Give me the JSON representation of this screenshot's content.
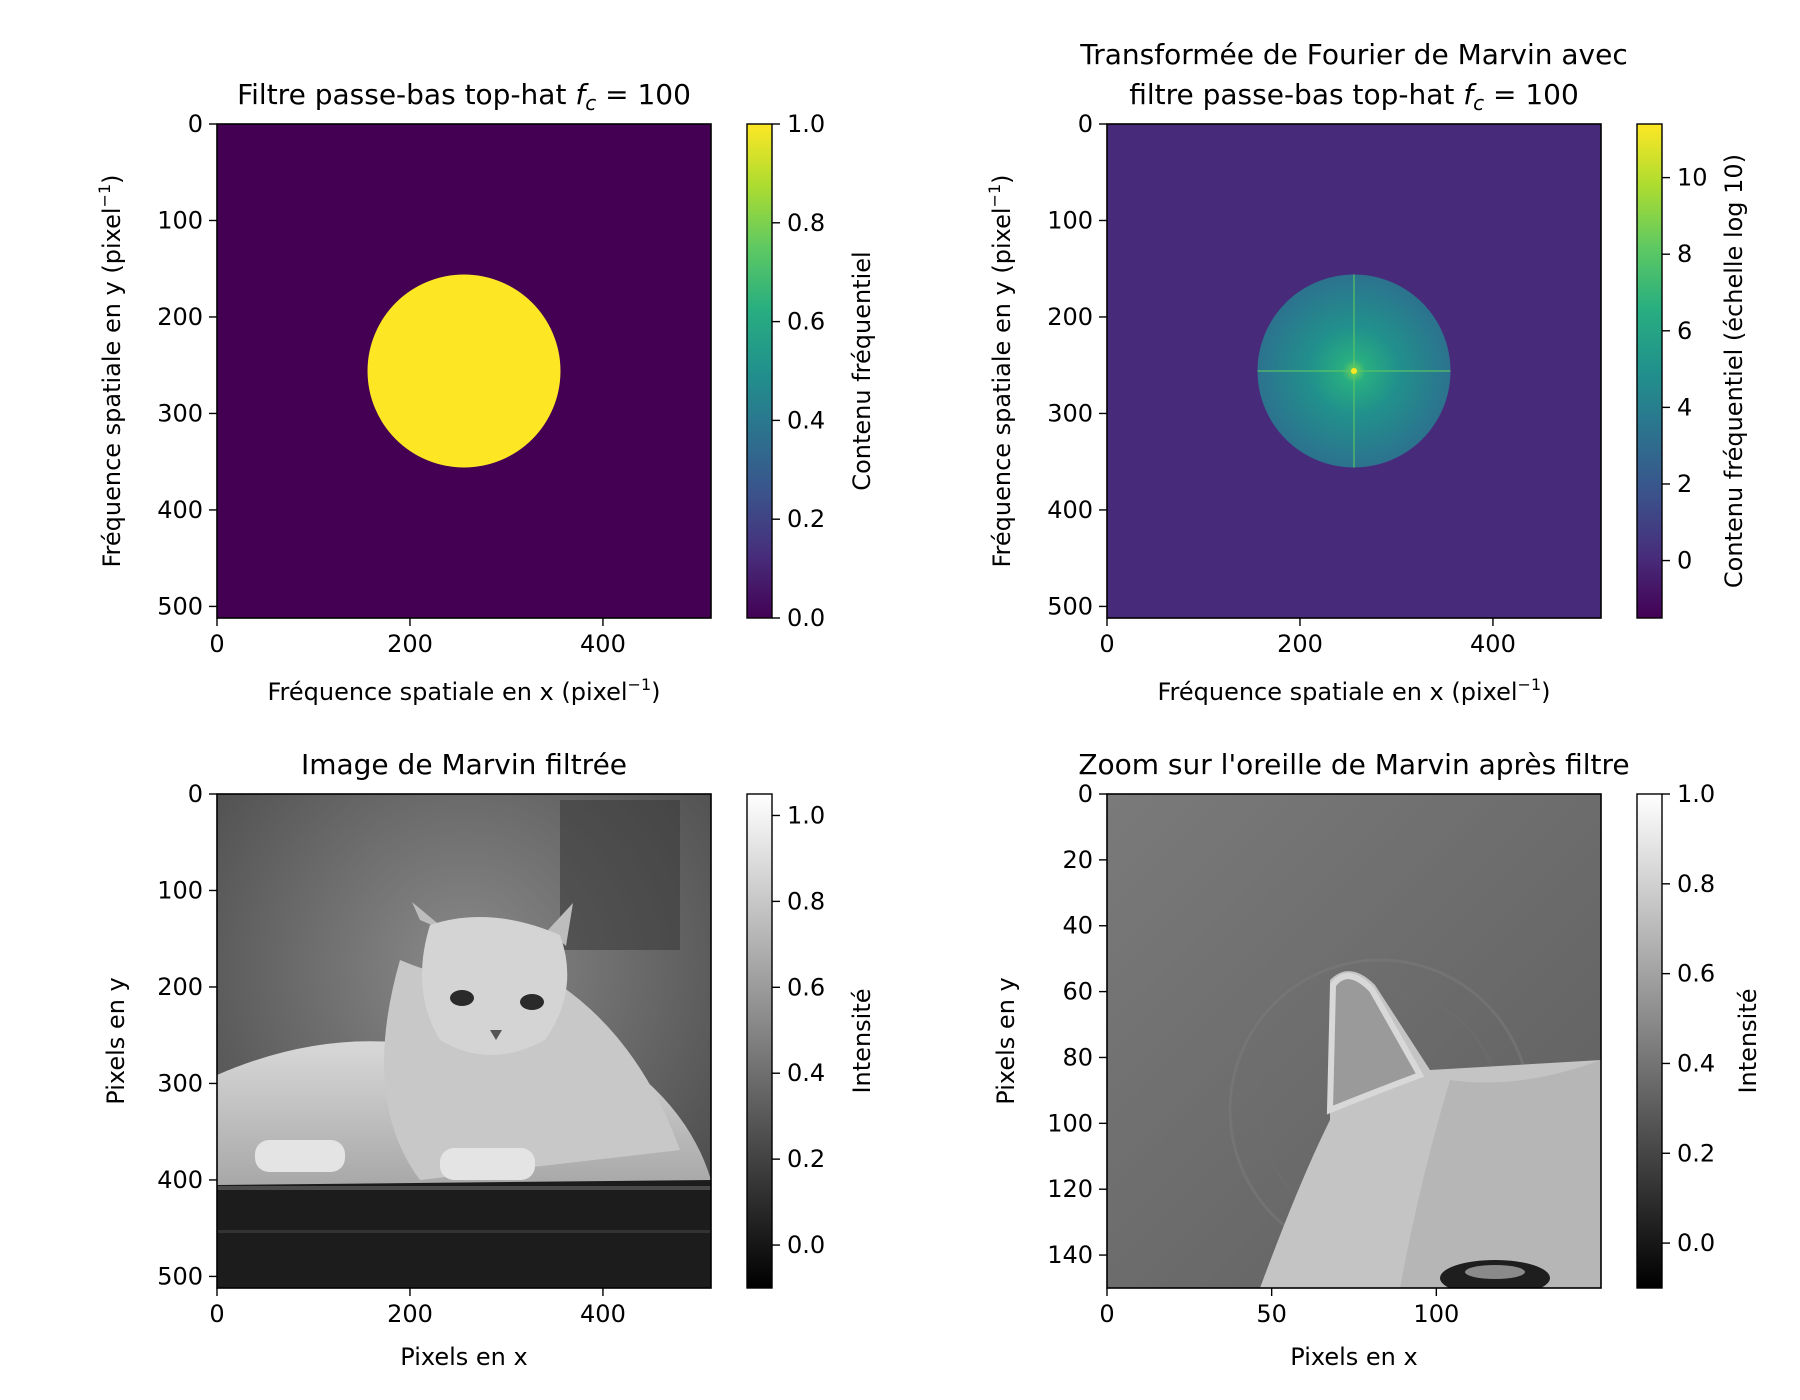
{
  "chart_data": [
    {
      "type": "heatmap",
      "id": "filter",
      "title_prefix": "Filtre passe-bas top-hat ",
      "title_math": "f",
      "title_sub": "c",
      "title_suffix": " = 100",
      "xlabel": "Fréquence spatiale en x (pixel",
      "xlabel_sup": "−1",
      "xlabel_end": ")",
      "ylabel": "Fréquence spatiale en y (pixel",
      "ylabel_sup": "−1",
      "ylabel_end": ")",
      "xlim": [
        0,
        512
      ],
      "ylim": [
        0,
        512
      ],
      "xticks": [
        0,
        200,
        400
      ],
      "yticks": [
        0,
        100,
        200,
        300,
        400,
        500
      ],
      "grid": false,
      "colormap": "viridis",
      "colorbar": {
        "label": "Contenu fréquentiel",
        "range": [
          0.0,
          1.0
        ],
        "ticks": [
          "0.0",
          "0.2",
          "0.4",
          "0.6",
          "0.8",
          "1.0"
        ],
        "tick_values": [
          0.0,
          0.2,
          0.4,
          0.6,
          0.8,
          1.0
        ]
      },
      "content": {
        "background_value": 0.0,
        "disk_value": 1.0,
        "disk_center": [
          256,
          256
        ],
        "disk_radius": 100
      }
    },
    {
      "type": "heatmap",
      "id": "spectrum",
      "title_line1": "Transformée de Fourier de Marvin avec",
      "title_prefix": "filtre passe-bas top-hat ",
      "title_math": "f",
      "title_sub": "c",
      "title_suffix": " = 100",
      "xlabel": "Fréquence spatiale en x (pixel",
      "xlabel_sup": "−1",
      "xlabel_end": ")",
      "ylabel": "Fréquence spatiale en y (pixel",
      "ylabel_sup": "−1",
      "ylabel_end": ")",
      "xlim": [
        0,
        512
      ],
      "ylim": [
        0,
        512
      ],
      "xticks": [
        0,
        200,
        400
      ],
      "yticks": [
        0,
        100,
        200,
        300,
        400,
        500
      ],
      "grid": false,
      "colormap": "viridis",
      "colorbar": {
        "label": "Contenu fréquentiel (échelle log 10)",
        "range": [
          -1.5,
          11.4
        ],
        "ticks": [
          "0",
          "2",
          "4",
          "6",
          "8",
          "10"
        ],
        "tick_values": [
          0,
          2,
          4,
          6,
          8,
          10
        ]
      },
      "content": {
        "background_value": -0.8,
        "disk_center": [
          256,
          256
        ],
        "disk_radius": 100,
        "center_peak_value": 11.4
      }
    },
    {
      "type": "heatmap",
      "id": "filtered",
      "title": "Image de Marvin filtrée",
      "xlabel": "Pixels en x",
      "ylabel": "Pixels en y",
      "xlim": [
        0,
        512
      ],
      "ylim": [
        0,
        512
      ],
      "xticks": [
        0,
        200,
        400
      ],
      "yticks": [
        0,
        100,
        200,
        300,
        400,
        500
      ],
      "grid": false,
      "colormap": "gray",
      "colorbar": {
        "label": "Intensité",
        "range": [
          -0.1,
          1.05
        ],
        "ticks": [
          "0.0",
          "0.2",
          "0.4",
          "0.6",
          "0.8",
          "1.0"
        ],
        "tick_values": [
          0.0,
          0.2,
          0.4,
          0.6,
          0.8,
          1.0
        ]
      }
    },
    {
      "type": "heatmap",
      "id": "zoom",
      "title": "Zoom sur l'oreille de Marvin après filtre",
      "xlabel": "Pixels en x",
      "ylabel": "Pixels en y",
      "xlim": [
        0,
        150
      ],
      "ylim": [
        0,
        150
      ],
      "xticks": [
        0,
        50,
        100
      ],
      "yticks": [
        0,
        20,
        40,
        60,
        80,
        100,
        120,
        140
      ],
      "grid": false,
      "colormap": "gray",
      "colorbar": {
        "label": "Intensité",
        "range": [
          -0.1,
          1.0
        ],
        "ticks": [
          "0.0",
          "0.2",
          "0.4",
          "0.6",
          "0.8",
          "1.0"
        ],
        "tick_values": [
          0.0,
          0.2,
          0.4,
          0.6,
          0.8,
          1.0
        ]
      }
    }
  ]
}
